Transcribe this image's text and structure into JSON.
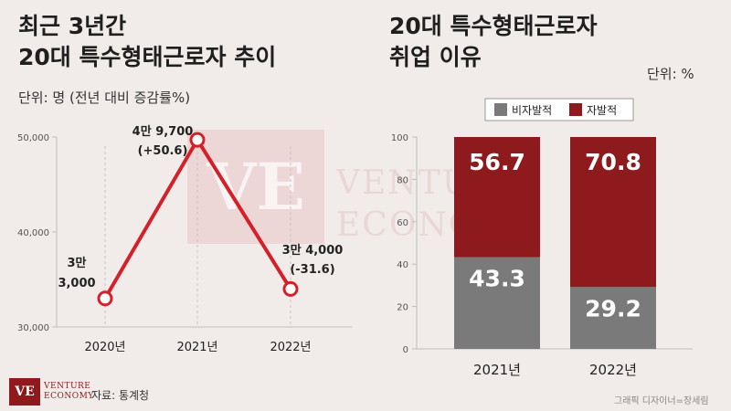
{
  "left": {
    "title_line1": "최근 3년간",
    "title_line2": "20대 특수형태근로자 추이",
    "unit": "단위: 명 (전년 대비 증감률%)"
  },
  "right": {
    "title_line1": "20대 특수형태근로자",
    "title_line2": "취업 이유",
    "unit": "단위: %"
  },
  "watermark": {
    "initials": "VE",
    "line1": "VENTURE",
    "line2": "ECONOMY"
  },
  "footer": {
    "source": "자료: 통계청",
    "logo_initials": "VE",
    "logo_line1": "VENTURE",
    "logo_line2": "ECONOMY",
    "credit": "그래픽 디자이너=장세림"
  },
  "colors": {
    "accent_red": "#8e1a1e",
    "line_red": "#d42029",
    "gray": "#7a7a7a",
    "background": "#f1ecea"
  },
  "chart_data": [
    {
      "type": "line",
      "x": [
        "2020년",
        "2021년",
        "2022년"
      ],
      "series": [
        {
          "values": [
            33000,
            49700,
            34000
          ],
          "labels": [
            [
              "3만",
              "3,000"
            ],
            [
              "4만 9,700",
              "(+50.6)"
            ],
            [
              "3만 4,000",
              "(-31.6)"
            ]
          ]
        }
      ],
      "ylim": [
        30000,
        50000
      ],
      "yticks": [
        30000,
        40000,
        50000
      ],
      "ytick_labels": [
        "30,000",
        "40,000",
        "50,000"
      ],
      "grid": "vertical dashed"
    },
    {
      "type": "bar",
      "stacked": true,
      "categories": [
        "2021년",
        "2022년"
      ],
      "series": [
        {
          "name": "비자발적",
          "values": [
            43.3,
            29.2
          ],
          "color": "#7a7a7a"
        },
        {
          "name": "자발적",
          "values": [
            56.7,
            70.8
          ],
          "color": "#8e1a1e"
        }
      ],
      "ylim": [
        0,
        100
      ],
      "yticks": [
        0,
        20,
        40,
        60,
        80,
        100
      ],
      "legend": "top"
    }
  ]
}
